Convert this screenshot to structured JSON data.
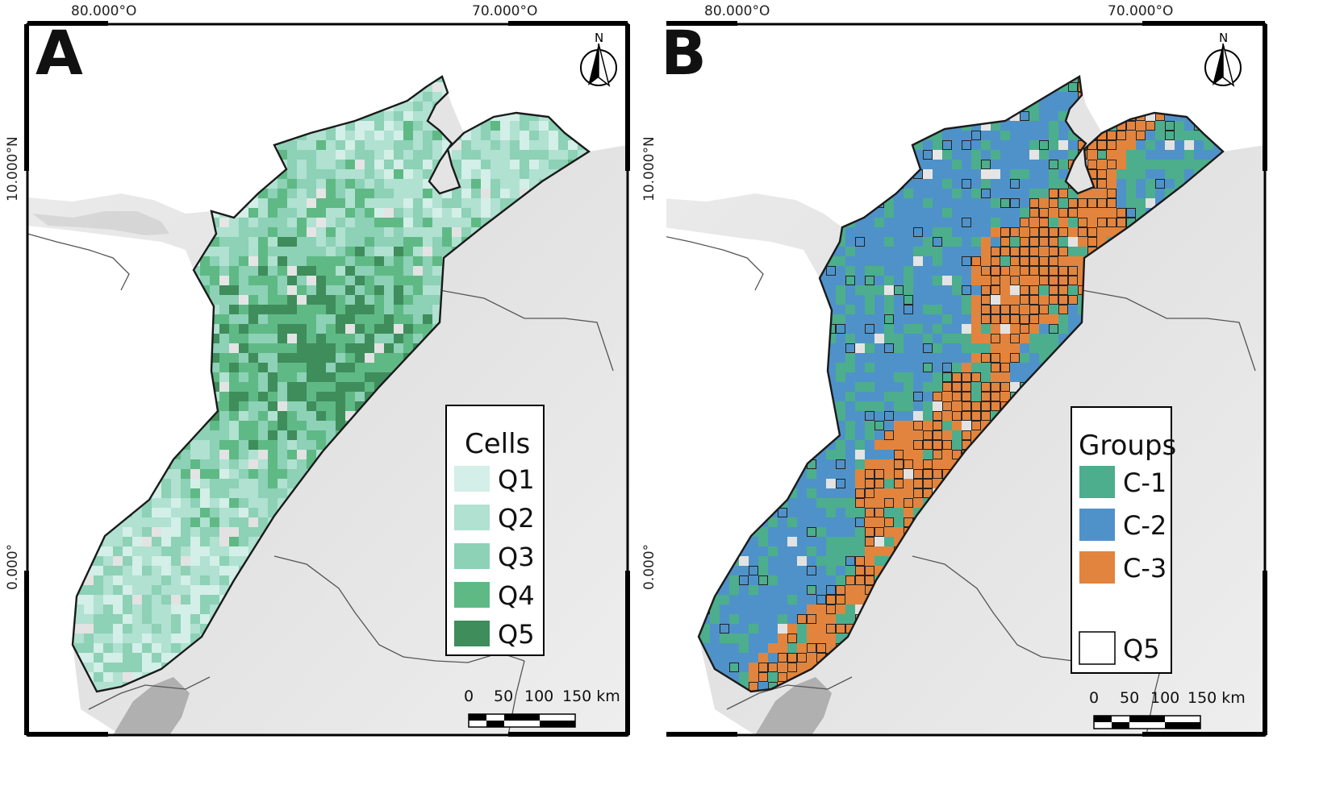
{
  "panels": [
    {
      "id": "A",
      "letter": "A",
      "lon_labels": [
        "80.000°O",
        "70.000°O"
      ],
      "lat_labels": [
        "10.000°N",
        "0.000°"
      ],
      "legend": {
        "title": "Cells",
        "items": [
          {
            "label": "Q1",
            "color": "#d3efe7"
          },
          {
            "label": "Q2",
            "color": "#b0e1d1"
          },
          {
            "label": "Q3",
            "color": "#8dd1b7"
          },
          {
            "label": "Q4",
            "color": "#5fb985"
          },
          {
            "label": "Q5",
            "color": "#3e8d5b"
          }
        ]
      },
      "scale_bar": {
        "labels": [
          "0",
          "50",
          "100",
          "150 km"
        ]
      },
      "north_arrow": "N"
    },
    {
      "id": "B",
      "letter": "B",
      "lon_labels": [
        "80.000°O",
        "70.000°O"
      ],
      "lat_labels": [
        "10.000°N",
        "0.000°"
      ],
      "legend": {
        "title": "Groups",
        "items": [
          {
            "label": "C-1",
            "color": "#4cae8c"
          },
          {
            "label": "C-2",
            "color": "#4f92c9"
          },
          {
            "label": "C-3",
            "color": "#e2843d"
          }
        ],
        "outline_item": {
          "label": "Q5",
          "color": "#ffffff"
        }
      },
      "scale_bar": {
        "labels": [
          "0",
          "50",
          "100",
          "150 km"
        ]
      },
      "north_arrow": "N"
    }
  ]
}
